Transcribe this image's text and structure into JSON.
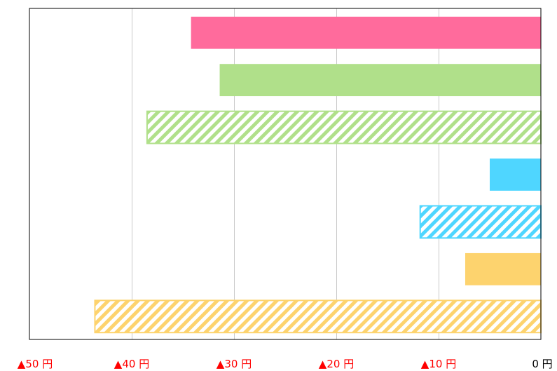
{
  "chart_data": {
    "type": "bar",
    "orientation": "horizontal",
    "x_ticks": [
      {
        "value": -50,
        "label": "▲50 円",
        "negative": true
      },
      {
        "value": -40,
        "label": "▲40 円",
        "negative": true
      },
      {
        "value": -30,
        "label": "▲30 円",
        "negative": true
      },
      {
        "value": -20,
        "label": "▲20 円",
        "negative": true
      },
      {
        "value": -10,
        "label": "▲10 円",
        "negative": true
      },
      {
        "value": 0,
        "label": "0 円",
        "negative": false
      }
    ],
    "xlim": [
      -50,
      0
    ],
    "grid": true,
    "bars": [
      {
        "value": -34.2,
        "color": "#ff6b9c",
        "pattern": "solid"
      },
      {
        "value": -31.4,
        "color": "#b0e08a",
        "pattern": "solid"
      },
      {
        "value": -38.5,
        "color": "#b0e08a",
        "pattern": "hatched"
      },
      {
        "value": -5.0,
        "color": "#4fd6ff",
        "pattern": "solid"
      },
      {
        "value": -11.8,
        "color": "#4fd6ff",
        "pattern": "hatched"
      },
      {
        "value": -7.4,
        "color": "#fdd36e",
        "pattern": "solid"
      },
      {
        "value": -43.6,
        "color": "#fdd36e",
        "pattern": "hatched"
      }
    ],
    "colors": {
      "negative_label": "#ff0000",
      "zero_label": "#000000",
      "grid": "#c8c8c8",
      "frame": "#000000"
    }
  }
}
